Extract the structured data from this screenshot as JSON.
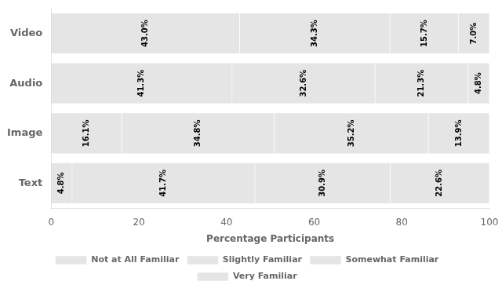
{
  "chart_data": {
    "type": "bar",
    "orientation": "horizontal",
    "stacked": true,
    "categories": [
      "Text",
      "Image",
      "Audio",
      "Video"
    ],
    "series": [
      {
        "name": "Not at All Familiar",
        "values": [
          4.8,
          16.1,
          41.3,
          43.0
        ],
        "value_labels": [
          "4.8%",
          "16.1%",
          "41.3%",
          "43.0%"
        ]
      },
      {
        "name": "Slightly Familiar",
        "values": [
          41.7,
          34.8,
          32.6,
          34.3
        ],
        "value_labels": [
          "41.7%",
          "34.8%",
          "32.6%",
          "34.3%"
        ]
      },
      {
        "name": "Somewhat Familiar",
        "values": [
          30.9,
          35.2,
          21.3,
          15.7
        ],
        "value_labels": [
          "30.9%",
          "35.2%",
          "21.3%",
          "15.7%"
        ]
      },
      {
        "name": "Very Familiar",
        "values": [
          22.6,
          13.9,
          4.8,
          7.0
        ],
        "value_labels": [
          "22.6%",
          "13.9%",
          "4.8%",
          "7.0%"
        ]
      }
    ],
    "xlabel": "Percentage Participants",
    "xlim": [
      0,
      100
    ],
    "xticks": [
      0,
      20,
      40,
      60,
      80,
      100
    ],
    "grid": false,
    "data_labels": true,
    "legend": "bottom"
  }
}
